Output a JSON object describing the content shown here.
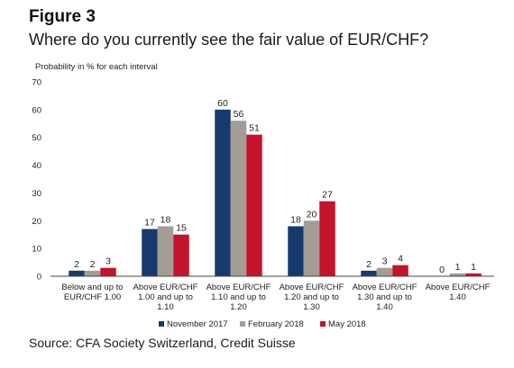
{
  "figure": {
    "label": "Figure 3",
    "title": "Where do you currently see the fair value of EUR/CHF?",
    "source": "Source: CFA Society Switzerland, Credit Suisse"
  },
  "colors": {
    "november": "#163a6b",
    "february": "#a49d96",
    "may": "#c2142b",
    "axis": "#444444"
  },
  "chart_data": {
    "type": "bar",
    "ylabel": "Probability in % for each interval",
    "xlabel": "",
    "ylim": [
      0,
      70
    ],
    "yticks": [
      0,
      10,
      20,
      30,
      40,
      50,
      60,
      70
    ],
    "grid": false,
    "legend_position": "bottom",
    "categories": [
      [
        "Below and up to",
        "EUR/CHF 1.00"
      ],
      [
        "Above EUR/CHF",
        "1.00 and up to",
        "1.10"
      ],
      [
        "Above EUR/CHF",
        "1.10 and up to",
        "1.20"
      ],
      [
        "Above EUR/CHF",
        "1.20 and up to",
        "1.30"
      ],
      [
        "Above EUR/CHF",
        "1.30 and up to",
        "1.40"
      ],
      [
        "Above EUR/CHF",
        "1.40"
      ]
    ],
    "series": [
      {
        "name": "November 2017",
        "color_key": "november",
        "values": [
          2,
          17,
          60,
          18,
          2,
          0
        ]
      },
      {
        "name": "February 2018",
        "color_key": "february",
        "values": [
          2,
          18,
          56,
          20,
          3,
          1
        ]
      },
      {
        "name": "May 2018",
        "color_key": "may",
        "values": [
          3,
          15,
          51,
          27,
          4,
          1
        ]
      }
    ]
  }
}
